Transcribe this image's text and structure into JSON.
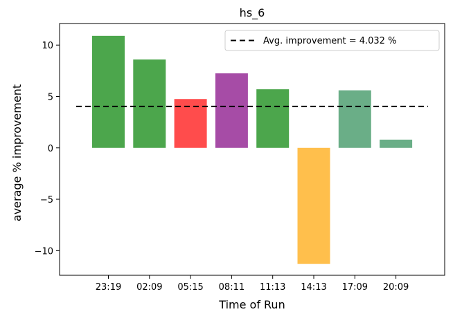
{
  "chart_data": {
    "type": "bar",
    "title": "hs_6",
    "xlabel": "Time of Run",
    "ylabel": "average % improvement",
    "categories": [
      "23:19",
      "02:09",
      "05:15",
      "08:11",
      "11:13",
      "14:13",
      "17:09",
      "20:09"
    ],
    "values": [
      10.9,
      8.6,
      4.75,
      7.25,
      5.7,
      -11.3,
      5.6,
      0.8
    ],
    "bar_colors": [
      "#4ca64c",
      "#4ca64c",
      "#ff4c4c",
      "#a64ca6",
      "#4ca64c",
      "#ffbf4c",
      "#6aae87",
      "#6aae87"
    ],
    "ylim": [
      -12.4,
      12.1
    ],
    "yticks": [
      -10,
      -5,
      0,
      5,
      10
    ],
    "ytick_labels": [
      "−10",
      "−5",
      "0",
      "5",
      "10"
    ],
    "reference_line": {
      "value": 4.032,
      "style": "dashed",
      "color": "#000000"
    },
    "legend": {
      "entries": [
        "Avg. improvement = 4.032 %"
      ],
      "placement": "top-right"
    },
    "grid": false
  }
}
